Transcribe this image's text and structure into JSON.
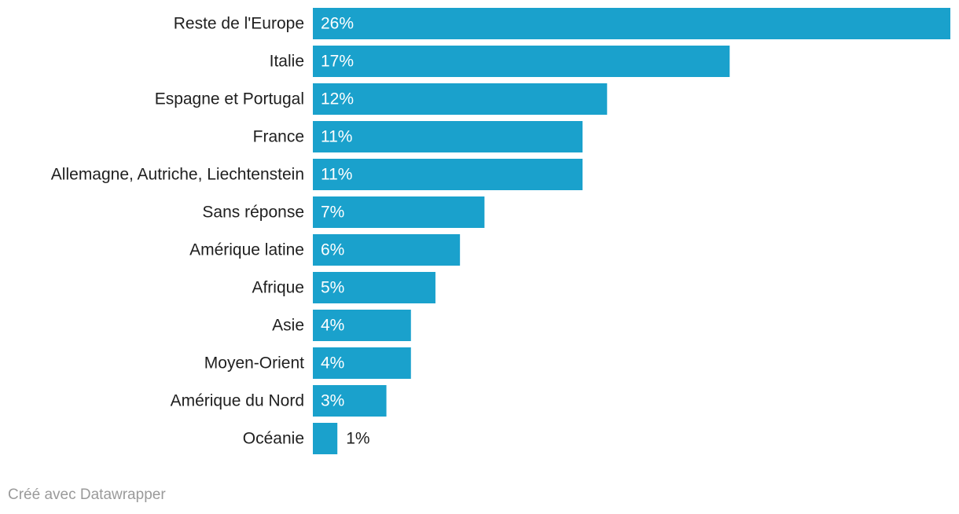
{
  "chart_data": {
    "type": "bar",
    "orientation": "horizontal",
    "title": "",
    "xlabel": "",
    "ylabel": "",
    "categories": [
      "Reste de l'Europe",
      "Italie",
      "Espagne et Portugal",
      "France",
      "Allemagne, Autriche, Liechtenstein",
      "Sans réponse",
      "Amérique latine",
      "Afrique",
      "Asie",
      "Moyen-Orient",
      "Amérique du Nord",
      "Océanie"
    ],
    "values": [
      26,
      17,
      12,
      11,
      11,
      7,
      6,
      5,
      4,
      4,
      3,
      1
    ],
    "value_labels": [
      "26%",
      "17%",
      "12%",
      "11%",
      "11%",
      "7%",
      "6%",
      "5%",
      "4%",
      "4%",
      "3%",
      "1%"
    ],
    "unit": "%",
    "xlim": [
      0,
      26
    ],
    "grid": false,
    "bar_color": "#1aa1cc"
  },
  "footer": {
    "credit": "Créé avec Datawrapper"
  }
}
